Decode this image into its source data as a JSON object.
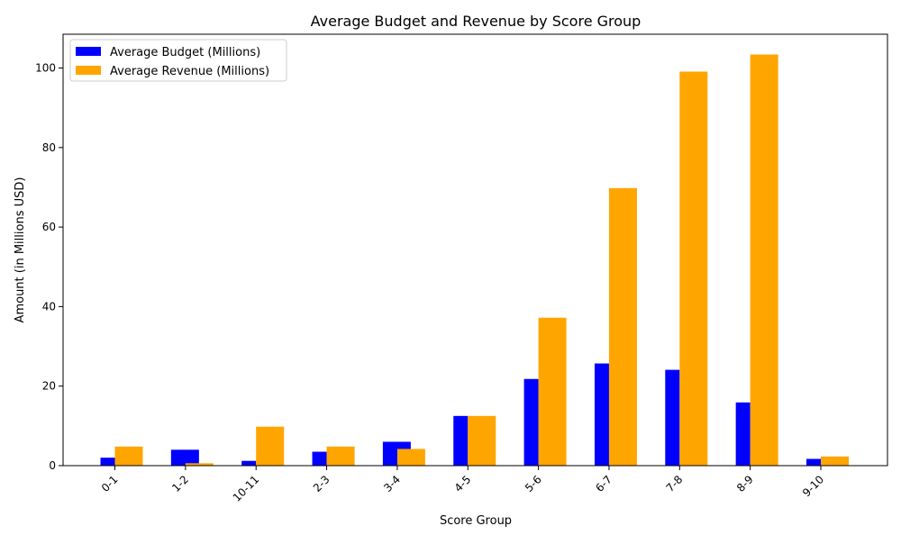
{
  "chart_data": {
    "type": "bar",
    "title": "Average Budget and Revenue by Score Group",
    "xlabel": "Score Group",
    "ylabel": "Amount (in Millions USD)",
    "categories": [
      "0-1",
      "1-2",
      "10-11",
      "2-3",
      "3-4",
      "4-5",
      "5-6",
      "6-7",
      "7-8",
      "8-9",
      "9-10"
    ],
    "series": [
      {
        "name": "Average Budget (Millions)",
        "color": "#0000ff",
        "values": [
          2.0,
          4.0,
          1.2,
          3.5,
          6.0,
          12.5,
          21.8,
          25.7,
          24.1,
          15.9,
          1.7
        ]
      },
      {
        "name": "Average Revenue (Millions)",
        "color": "#ffa500",
        "values": [
          4.8,
          0.6,
          9.8,
          4.8,
          4.2,
          12.5,
          37.2,
          69.8,
          99.1,
          103.4,
          2.3
        ]
      }
    ],
    "ylim": [
      0,
      108.5
    ],
    "yticks": [
      0,
      20,
      40,
      60,
      80,
      100
    ],
    "grid": false,
    "legend_position": "top-left"
  }
}
